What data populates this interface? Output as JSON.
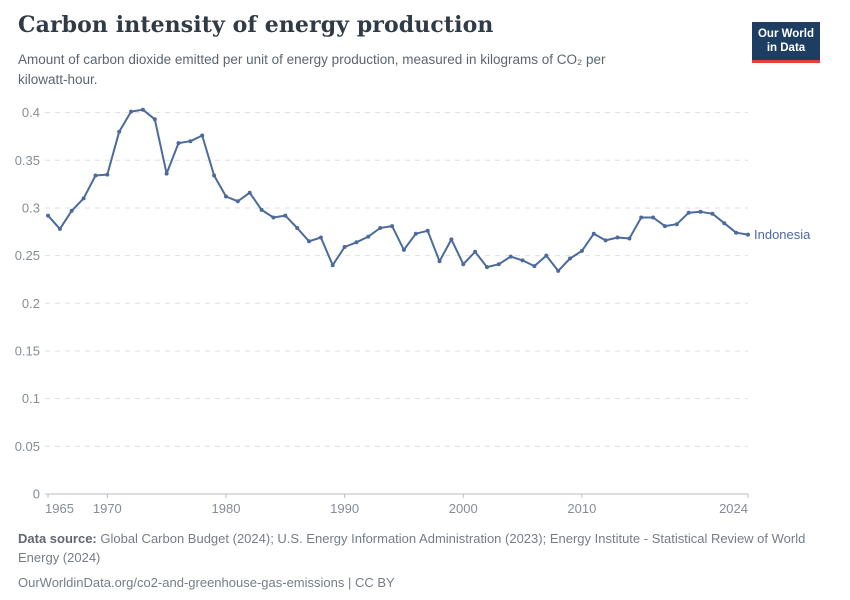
{
  "header": {
    "title": "Carbon intensity of energy production",
    "subtitle_line1": "Amount of carbon dioxide emitted per unit of energy production, measured in kilograms of CO₂ per",
    "subtitle_line2": "kilowatt-hour.",
    "logo": {
      "line1": "Our World",
      "line2": "in Data",
      "bg": "#1d3d63",
      "accent": "#e63e36"
    }
  },
  "chart_data": {
    "type": "line",
    "title": "Carbon intensity of energy production",
    "xlabel": "",
    "ylabel": "kilograms of CO₂ per kilowatt-hour",
    "xlim": [
      1965,
      2024
    ],
    "ylim": [
      0,
      0.4
    ],
    "grid": true,
    "legend_position": "end-of-line",
    "x_ticks": [
      1965,
      1970,
      1980,
      1990,
      2000,
      2010,
      2024
    ],
    "y_ticks": [
      0,
      0.05,
      0.1,
      0.15,
      0.2,
      0.25,
      0.3,
      0.35,
      0.4
    ],
    "series": [
      {
        "name": "Indonesia",
        "color": "#4C6B9C",
        "x": [
          1965,
          1966,
          1967,
          1968,
          1969,
          1970,
          1971,
          1972,
          1973,
          1974,
          1975,
          1976,
          1977,
          1978,
          1979,
          1980,
          1981,
          1982,
          1983,
          1984,
          1985,
          1986,
          1987,
          1988,
          1989,
          1990,
          1991,
          1992,
          1993,
          1994,
          1995,
          1996,
          1997,
          1998,
          1999,
          2000,
          2001,
          2002,
          2003,
          2004,
          2005,
          2006,
          2007,
          2008,
          2009,
          2010,
          2011,
          2012,
          2013,
          2014,
          2015,
          2016,
          2017,
          2018,
          2019,
          2020,
          2021,
          2022,
          2023,
          2024
        ],
        "values": [
          0.292,
          0.278,
          0.297,
          0.31,
          0.334,
          0.335,
          0.38,
          0.401,
          0.403,
          0.393,
          0.336,
          0.368,
          0.37,
          0.376,
          0.334,
          0.312,
          0.307,
          0.316,
          0.298,
          0.29,
          0.292,
          0.279,
          0.265,
          0.269,
          0.24,
          0.259,
          0.264,
          0.27,
          0.279,
          0.281,
          0.256,
          0.273,
          0.276,
          0.244,
          0.267,
          0.241,
          0.254,
          0.238,
          0.241,
          0.249,
          0.245,
          0.239,
          0.25,
          0.234,
          0.247,
          0.255,
          0.273,
          0.266,
          0.269,
          0.268,
          0.29,
          0.29,
          0.281,
          0.283,
          0.295,
          0.296,
          0.294,
          0.284,
          0.274,
          0.272
        ]
      }
    ],
    "end_label": "Indonesia"
  },
  "colors": {
    "line": "#4C6B9C",
    "grid": "#dedfe1",
    "axis": "#b9bec4",
    "tick_label": "#858d95"
  },
  "footer": {
    "source_label": "Data source:",
    "source_text": " Global Carbon Budget (2024); U.S. Energy Information Administration (2023); Energy Institute - Statistical Review of World Energy (2024)",
    "link_text": "OurWorldinData.org/co2-and-greenhouse-gas-emissions",
    "license_suffix": " | CC BY"
  }
}
